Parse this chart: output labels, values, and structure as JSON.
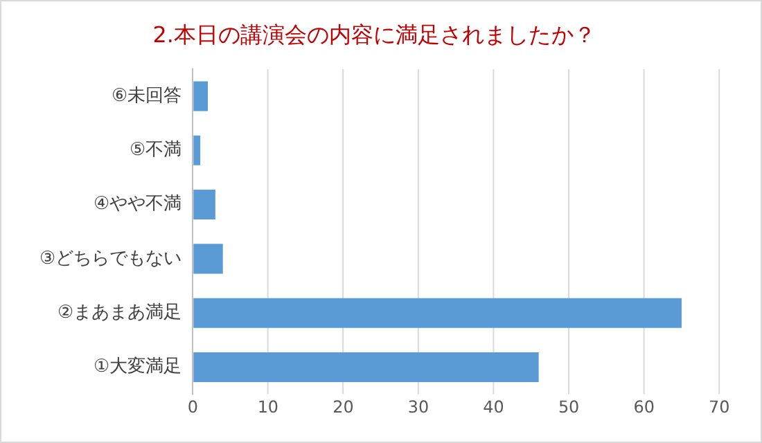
{
  "chart_data": {
    "type": "bar",
    "orientation": "horizontal",
    "title": "2.本日の講演会の内容に満足されましたか？",
    "categories": [
      "⑥未回答",
      "⑤不満",
      "④やや不満",
      "③どちらでもない",
      "②まあまあ満足",
      "①大変満足"
    ],
    "values": [
      2,
      1,
      3,
      4,
      65,
      46
    ],
    "color": "#5b9bd5",
    "xlim": [
      0,
      70
    ],
    "xticks": [
      0,
      10,
      20,
      30,
      40,
      50,
      60,
      70
    ],
    "grid": "x"
  }
}
